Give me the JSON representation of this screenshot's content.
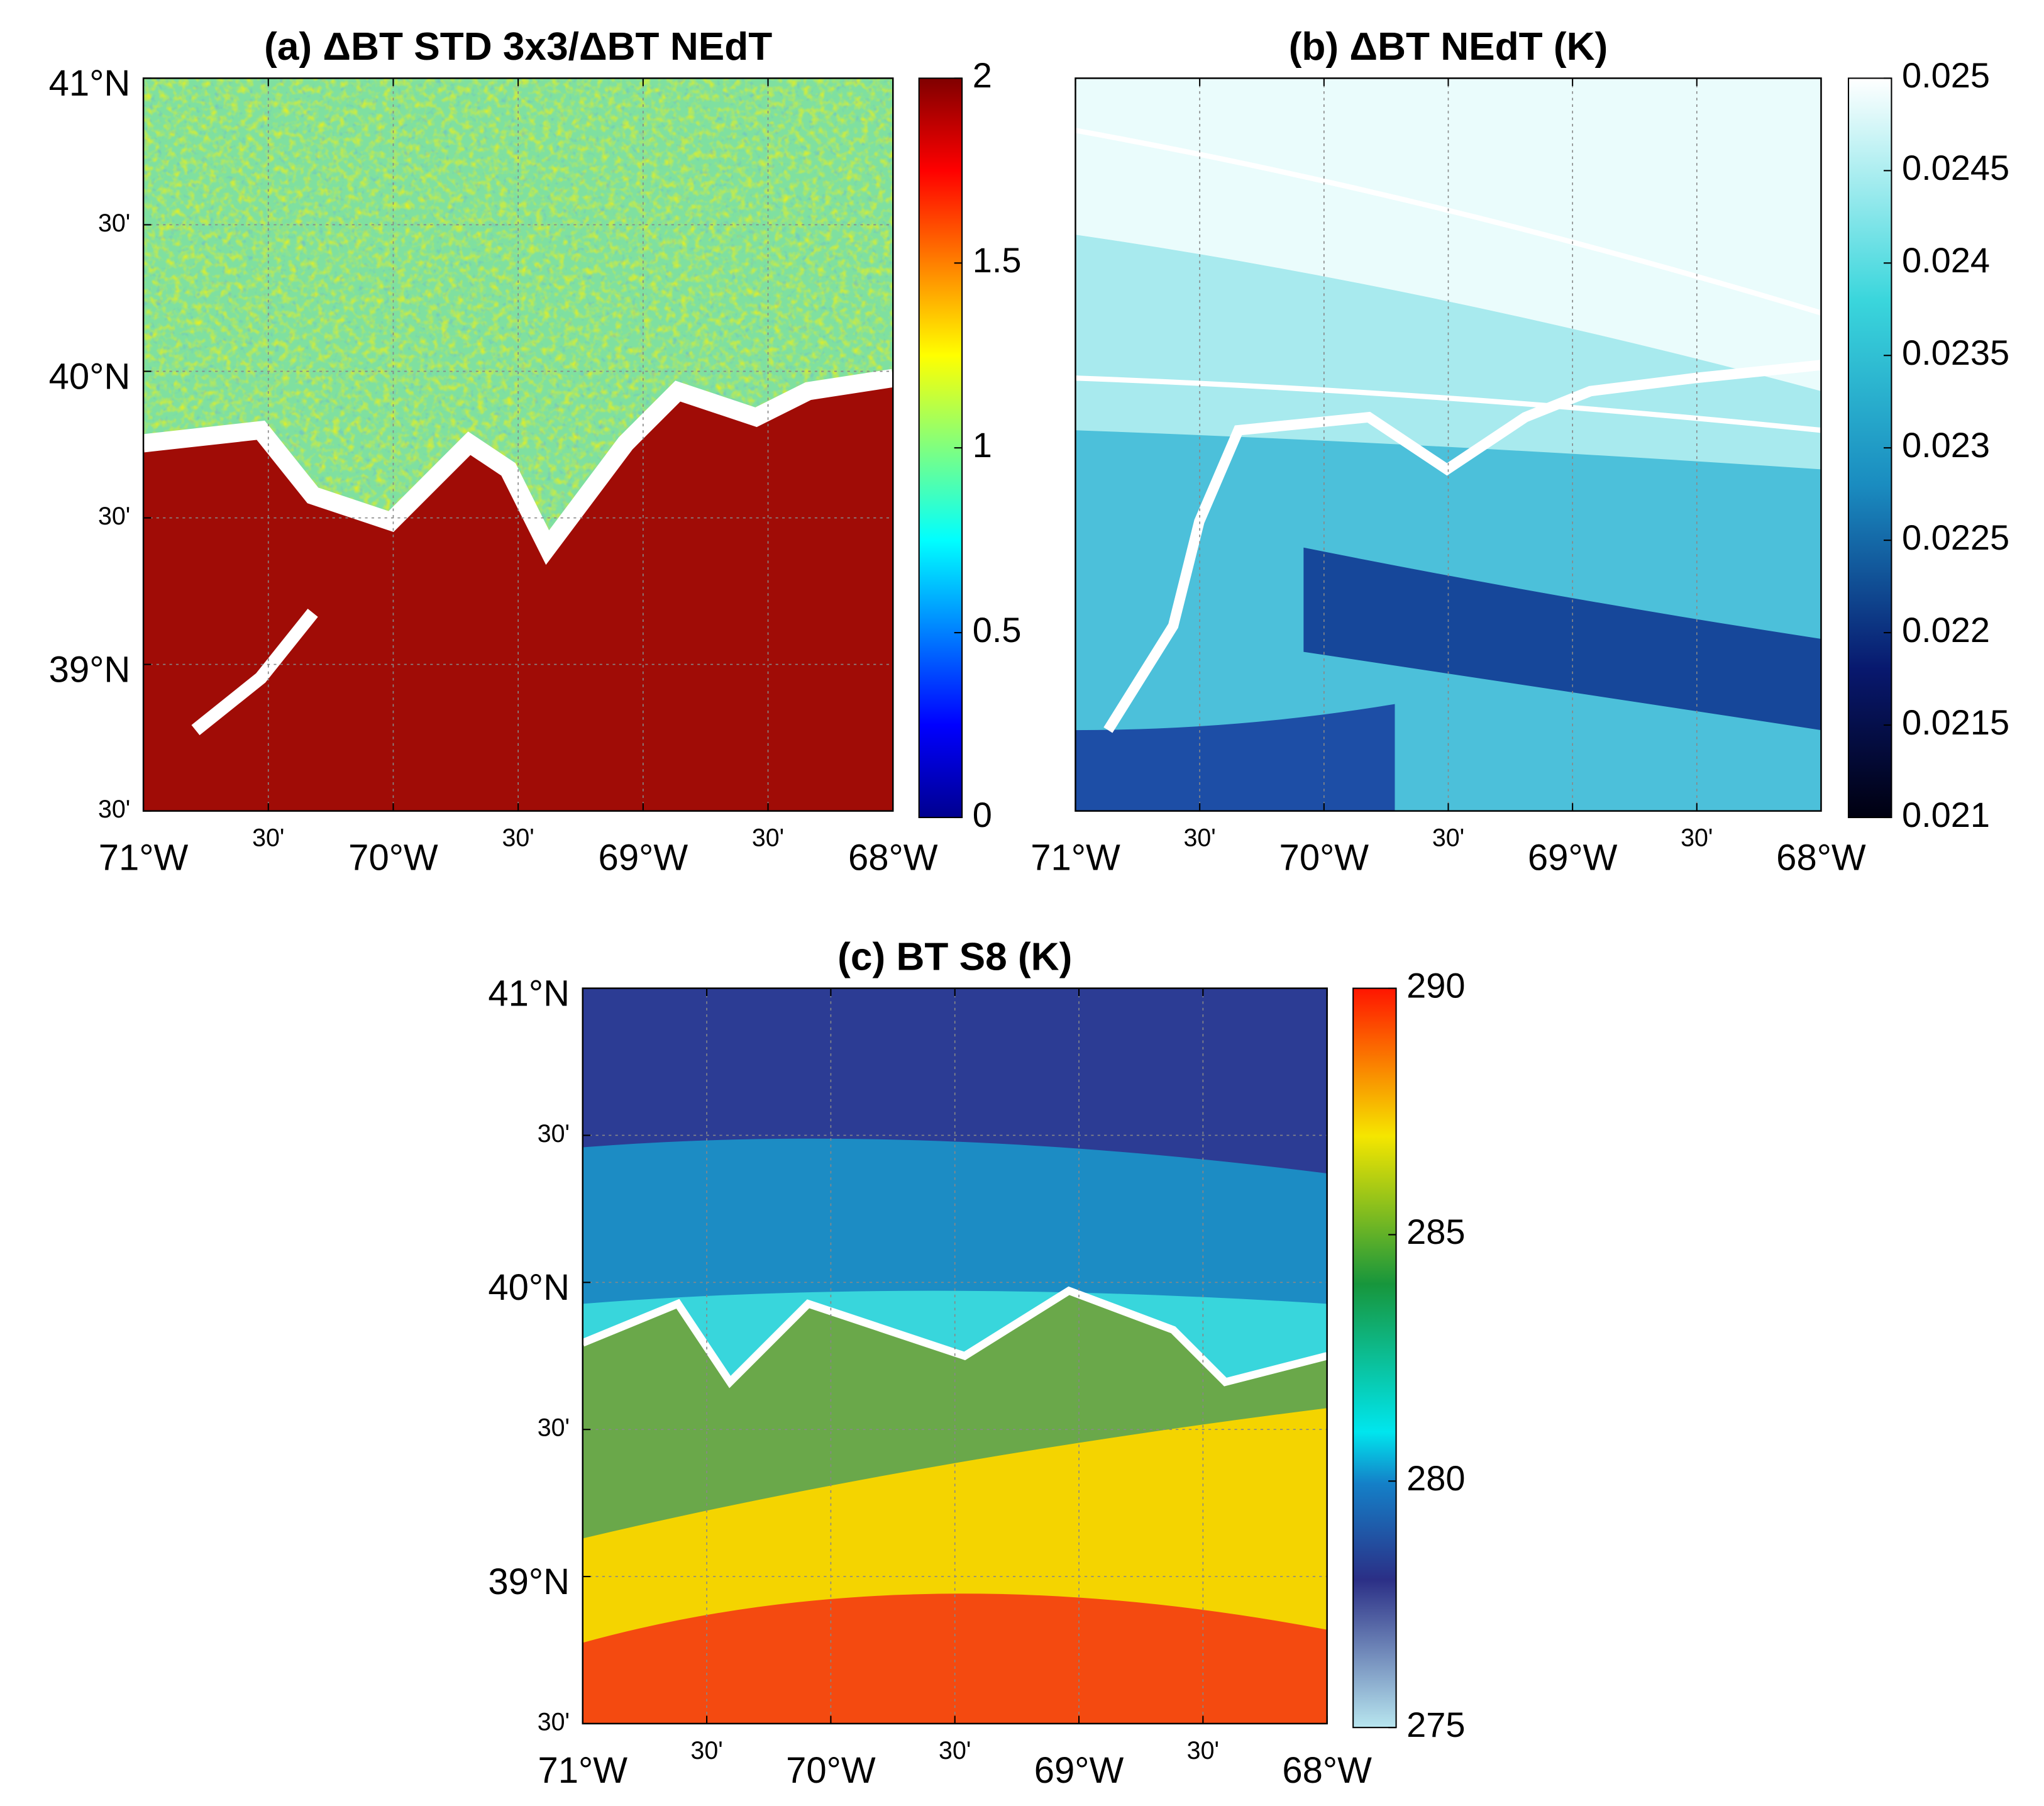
{
  "panels": [
    {
      "title": "(a)  ΔBT STD 3x3/ΔBT NEdT",
      "latlim": [
        38.5,
        41
      ],
      "lonlim": [
        -71,
        -68
      ],
      "lat_ticks": [
        {
          "value": 41,
          "label": "41°N"
        },
        {
          "value": 40.5,
          "label": "30'"
        },
        {
          "value": 40,
          "label": "40°N"
        },
        {
          "value": 39.5,
          "label": "30'"
        },
        {
          "value": 39,
          "label": "39°N"
        },
        {
          "value": 38.5,
          "label": "30'"
        }
      ],
      "lon_ticks": [
        {
          "value": -71,
          "label": "71°W"
        },
        {
          "value": -70.5,
          "label": "30'"
        },
        {
          "value": -70,
          "label": "70°W"
        },
        {
          "value": -69.5,
          "label": "30'"
        },
        {
          "value": -69,
          "label": "69°W"
        },
        {
          "value": -68.5,
          "label": "30'"
        },
        {
          "value": -68,
          "label": "68°W"
        }
      ],
      "clim": [
        0,
        2
      ],
      "cticks": [
        0,
        0.5,
        1,
        1.5,
        2
      ]
    },
    {
      "title": "(b)  ΔBT NEdT (K)",
      "latlim": [
        38.5,
        41
      ],
      "lonlim": [
        -71,
        -68
      ],
      "lat_ticks": [],
      "lon_ticks": [
        {
          "value": -71,
          "label": "71°W"
        },
        {
          "value": -70.5,
          "label": "30'"
        },
        {
          "value": -70,
          "label": "70°W"
        },
        {
          "value": -69.5,
          "label": "30'"
        },
        {
          "value": -69,
          "label": "69°W"
        },
        {
          "value": -68.5,
          "label": "30'"
        },
        {
          "value": -68,
          "label": "68°W"
        }
      ],
      "clim": [
        0.021,
        0.025
      ],
      "cticks": [
        0.021,
        0.0215,
        0.022,
        0.0225,
        0.023,
        0.0235,
        0.024,
        0.0245,
        0.025
      ]
    },
    {
      "title": "(c)  BT S8 (K)",
      "latlim": [
        38.5,
        41
      ],
      "lonlim": [
        -71,
        -68
      ],
      "lat_ticks": [
        {
          "value": 41,
          "label": "41°N"
        },
        {
          "value": 40.5,
          "label": "30'"
        },
        {
          "value": 40,
          "label": "40°N"
        },
        {
          "value": 39.5,
          "label": "30'"
        },
        {
          "value": 39,
          "label": "39°N"
        },
        {
          "value": 38.5,
          "label": "30'"
        }
      ],
      "lon_ticks": [
        {
          "value": -71,
          "label": "71°W"
        },
        {
          "value": -70.5,
          "label": "30'"
        },
        {
          "value": -70,
          "label": "70°W"
        },
        {
          "value": -69.5,
          "label": "30'"
        },
        {
          "value": -69,
          "label": "69°W"
        },
        {
          "value": -68.5,
          "label": "30'"
        },
        {
          "value": -68,
          "label": "68°W"
        }
      ],
      "clim": [
        275,
        290
      ],
      "cticks": [
        275,
        280,
        285,
        290
      ]
    }
  ]
}
